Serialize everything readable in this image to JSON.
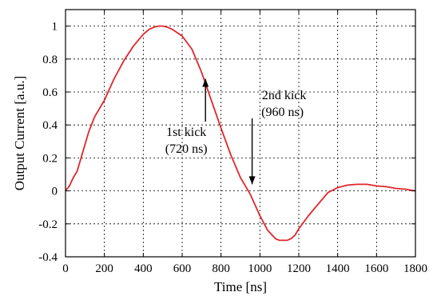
{
  "chart_data": {
    "type": "line",
    "title": "",
    "xlabel": "Time [ns]",
    "ylabel": "Output Current [a.u.]",
    "xlim": [
      0,
      1800
    ],
    "ylim": [
      -0.4,
      1.1
    ],
    "grid": true,
    "xticks": [
      0,
      200,
      400,
      600,
      800,
      1000,
      1200,
      1400,
      1600,
      1800
    ],
    "xtick_labels": [
      "0",
      "200",
      "400",
      "600",
      "800",
      "1000",
      "1200",
      "1400",
      "1600",
      "1800"
    ],
    "yticks": [
      -0.4,
      -0.2,
      0,
      0.2,
      0.4,
      0.6,
      0.8,
      1
    ],
    "ytick_labels": [
      "-0.4",
      "-0.2",
      "0",
      "0.2",
      "0.4",
      "0.6",
      "0.8",
      "1"
    ],
    "series": [
      {
        "color": "#e0262b",
        "x": [
          0,
          20,
          40,
          60,
          80,
          100,
          120,
          150,
          175,
          200,
          250,
          300,
          350,
          400,
          430,
          460,
          480,
          500,
          520,
          550,
          600,
          650,
          700,
          750,
          800,
          850,
          900,
          950,
          1000,
          1040,
          1080,
          1100,
          1120,
          1140,
          1160,
          1180,
          1200,
          1250,
          1300,
          1350,
          1400,
          1450,
          1500,
          1550,
          1600,
          1650,
          1700,
          1750,
          1800
        ],
        "y": [
          0.0,
          0.03,
          0.08,
          0.12,
          0.2,
          0.28,
          0.36,
          0.45,
          0.5,
          0.55,
          0.68,
          0.79,
          0.88,
          0.95,
          0.98,
          0.995,
          1.0,
          1.0,
          0.995,
          0.98,
          0.94,
          0.86,
          0.72,
          0.55,
          0.38,
          0.22,
          0.08,
          -0.02,
          -0.15,
          -0.24,
          -0.29,
          -0.3,
          -0.3,
          -0.3,
          -0.29,
          -0.27,
          -0.23,
          -0.15,
          -0.08,
          -0.01,
          0.02,
          0.035,
          0.04,
          0.04,
          0.03,
          0.025,
          0.015,
          0.01,
          0.0
        ]
      }
    ],
    "annotations": [
      {
        "line1": "1st kick",
        "line2": "(720 ns)",
        "x": 720,
        "y_tip": 0.68,
        "y_tail": 0.42
      },
      {
        "line1": "2nd kick",
        "line2": "(960 ns)",
        "x": 960,
        "y_tip": 0.04,
        "y_tail": 0.44
      }
    ]
  }
}
